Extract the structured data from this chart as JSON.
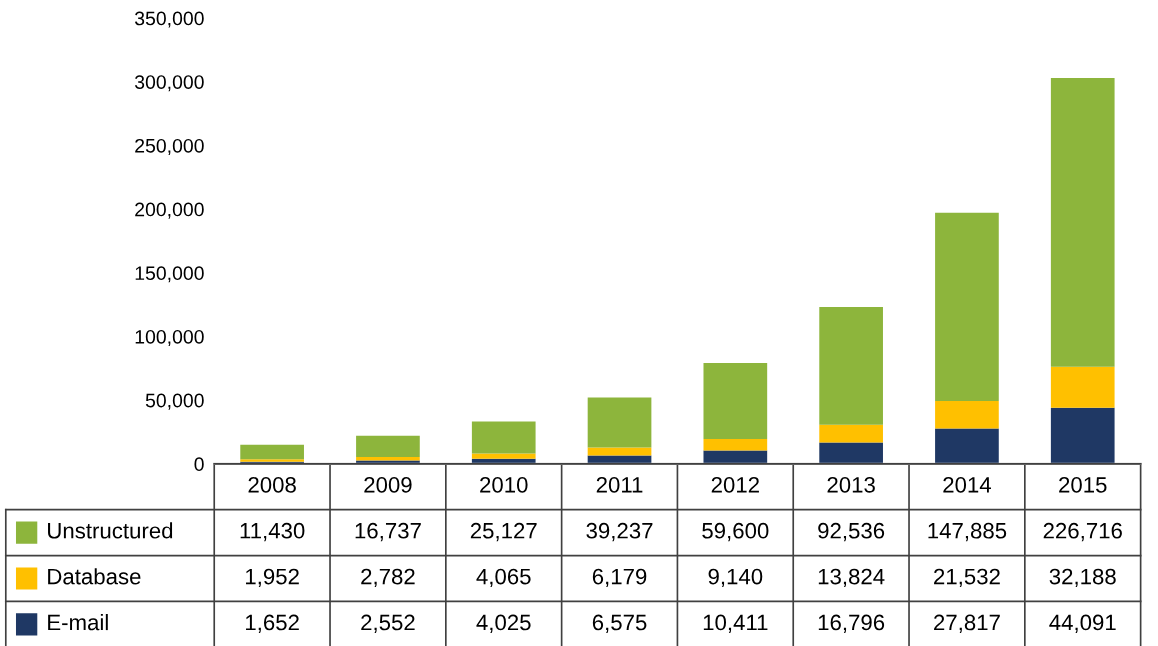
{
  "chart_data": {
    "type": "bar",
    "stacked": true,
    "categories": [
      "2008",
      "2009",
      "2010",
      "2011",
      "2012",
      "2013",
      "2014",
      "2015"
    ],
    "series": [
      {
        "name": "E-mail",
        "color": "#1f3864",
        "values": [
          1652,
          2552,
          4025,
          6575,
          10411,
          16796,
          27817,
          44091
        ],
        "value_labels": [
          "1,652",
          "2,552",
          "4,025",
          "6,575",
          "10,411",
          "16,796",
          "27,817",
          "44,091"
        ]
      },
      {
        "name": "Database",
        "color": "#ffc000",
        "values": [
          1952,
          2782,
          4065,
          6179,
          9140,
          13824,
          21532,
          32188
        ],
        "value_labels": [
          "1,952",
          "2,782",
          "4,065",
          "6,179",
          "9,140",
          "13,824",
          "21,532",
          "32,188"
        ]
      },
      {
        "name": "Unstructured",
        "color": "#8db53c",
        "values": [
          11430,
          16737,
          25127,
          39237,
          59600,
          92536,
          147885,
          226716
        ],
        "value_labels": [
          "11,430",
          "16,737",
          "25,127",
          "39,237",
          "59,600",
          "92,536",
          "147,885",
          "226,716"
        ]
      }
    ],
    "ylim": [
      0,
      350000
    ],
    "yticks": [
      {
        "value": 0,
        "label": "0"
      },
      {
        "value": 50000,
        "label": "50,000"
      },
      {
        "value": 100000,
        "label": "100,000"
      },
      {
        "value": 150000,
        "label": "150,000"
      },
      {
        "value": 200000,
        "label": "200,000"
      },
      {
        "value": 250000,
        "label": "250,000"
      },
      {
        "value": 300000,
        "label": "300,000"
      },
      {
        "value": 350000,
        "label": "350,000"
      }
    ],
    "grid": false,
    "legend": "bottom left"
  }
}
